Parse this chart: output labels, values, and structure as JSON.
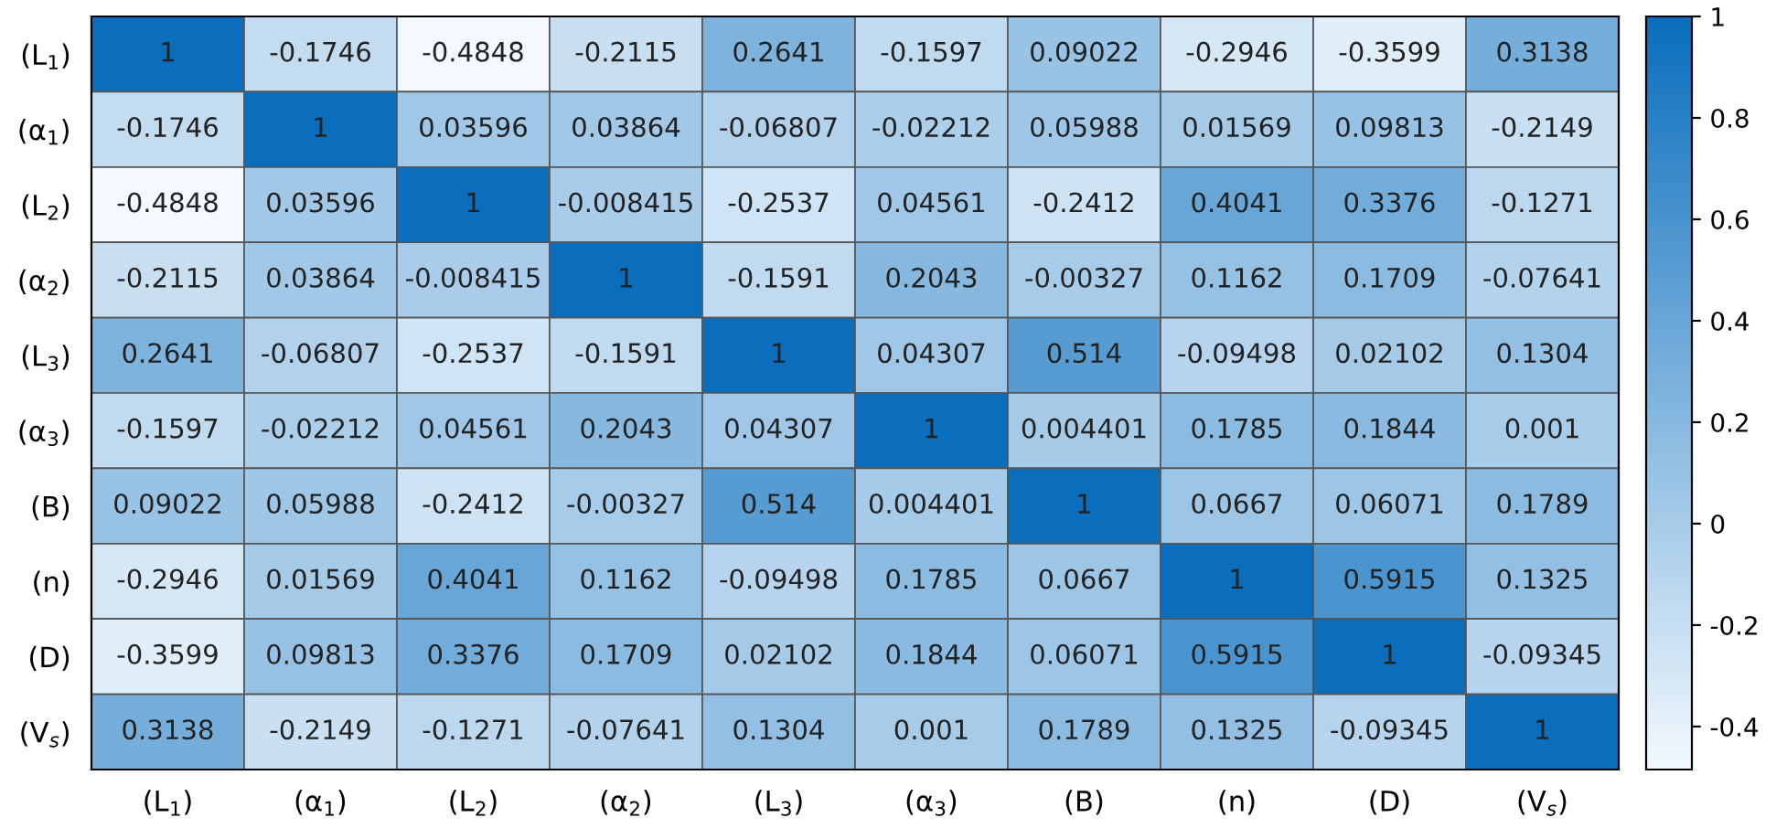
{
  "chart_data": {
    "type": "heatmap",
    "categories": [
      "(L$_{1}$)",
      "(α$_{1}$)",
      "(L$_{2}$)",
      "(α$_{2}$)",
      "(L$_{3}$)",
      "(α$_{3}$)",
      "(B)",
      "(n)",
      "(D)",
      "(V$_{s}$)"
    ],
    "y_categories": [
      "(L$_{1}$)",
      "(α$_{1}$)",
      "(L$_{2}$)",
      "(α$_{2}$)",
      "(L$_{3}$)",
      "(α$_{3}$)",
      "(B)",
      "(n)",
      "(D)",
      "(V$_{s}$)"
    ],
    "cells": [
      [
        1,
        -0.1746,
        -0.4848,
        -0.2115,
        0.2641,
        -0.1597,
        0.09022,
        -0.2946,
        -0.3599,
        0.3138
      ],
      [
        -0.1746,
        1,
        0.03596,
        0.03864,
        -0.06807,
        -0.02212,
        0.05988,
        0.01569,
        0.09813,
        -0.2149
      ],
      [
        -0.4848,
        0.03596,
        1,
        -0.008415,
        -0.2537,
        0.04561,
        -0.2412,
        0.4041,
        0.3376,
        -0.1271
      ],
      [
        -0.2115,
        0.03864,
        -0.008415,
        1,
        -0.1591,
        0.2043,
        -0.00327,
        0.1162,
        0.1709,
        -0.07641
      ],
      [
        0.2641,
        -0.06807,
        -0.2537,
        -0.1591,
        1,
        0.04307,
        0.514,
        -0.09498,
        0.02102,
        0.1304
      ],
      [
        -0.1597,
        -0.02212,
        0.04561,
        0.2043,
        0.04307,
        1,
        0.004401,
        0.1785,
        0.1844,
        0.001
      ],
      [
        0.09022,
        0.05988,
        -0.2412,
        -0.00327,
        0.514,
        0.004401,
        1,
        0.0667,
        0.06071,
        0.1789
      ],
      [
        -0.2946,
        0.01569,
        0.4041,
        0.1162,
        -0.09498,
        0.1785,
        0.0667,
        1,
        0.5915,
        0.1325
      ],
      [
        -0.3599,
        0.09813,
        0.3376,
        0.1709,
        0.02102,
        0.1844,
        0.06071,
        0.5915,
        1,
        -0.09345
      ],
      [
        0.3138,
        -0.2149,
        -0.1271,
        -0.07641,
        0.1304,
        0.001,
        0.1789,
        0.1325,
        -0.09345,
        1
      ]
    ],
    "data_labels": true,
    "clim": [
      -0.4848,
      1
    ],
    "cticks": [
      -0.4,
      -0.2,
      0,
      0.2,
      0.4,
      0.6,
      0.8,
      1
    ]
  }
}
